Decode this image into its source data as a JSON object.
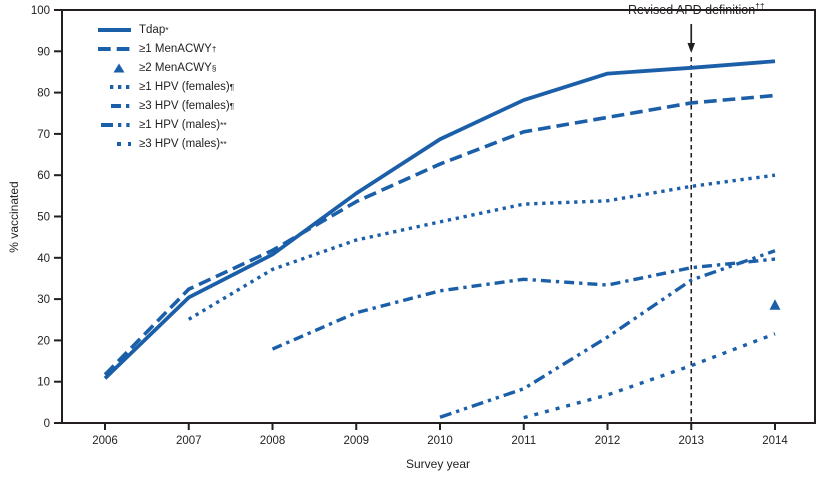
{
  "chart_data": {
    "type": "line",
    "xlabel": "Survey year",
    "ylabel": "% vaccinated",
    "x_ticks": [
      2006,
      2007,
      2008,
      2009,
      2010,
      2011,
      2012,
      2013,
      2014
    ],
    "y_ticks": [
      0,
      10,
      20,
      30,
      40,
      50,
      60,
      70,
      80,
      90,
      100
    ],
    "ylim": [
      0,
      100
    ],
    "grid": false,
    "legend_position": "top-left",
    "line_color": "#1c5fa9",
    "axis_color": "#231f20",
    "series": [
      {
        "id": "tdap",
        "name": "Tdap",
        "sup": "*",
        "line_style": "solid",
        "years": [
          2006,
          2007,
          2008,
          2009,
          2010,
          2011,
          2012,
          2013,
          2014
        ],
        "values": [
          10.8,
          30.4,
          40.8,
          55.6,
          68.7,
          78.2,
          84.6,
          86.0,
          87.6
        ]
      },
      {
        "id": "men1",
        "name": "≥1 MenACWY",
        "sup": "†",
        "line_style": "dashed",
        "years": [
          2006,
          2007,
          2008,
          2009,
          2010,
          2011,
          2012,
          2013,
          2014
        ],
        "values": [
          11.7,
          32.4,
          41.8,
          53.6,
          62.7,
          70.5,
          74.0,
          77.5,
          79.3
        ]
      },
      {
        "id": "men2",
        "name": "≥2 MenACWY",
        "sup": "§",
        "line_style": "triangle-marker",
        "years": [
          2014
        ],
        "values": [
          28.5
        ]
      },
      {
        "id": "hpv1f",
        "name": "≥1 HPV (females)",
        "sup": "¶",
        "line_style": "dotted",
        "years": [
          2007,
          2008,
          2009,
          2010,
          2011,
          2012,
          2013,
          2014
        ],
        "values": [
          25.1,
          37.2,
          44.3,
          48.7,
          53.0,
          53.8,
          57.3,
          60.0
        ]
      },
      {
        "id": "hpv3f",
        "name": "≥3 HPV (females)",
        "sup": "¶",
        "line_style": "dash-dot",
        "years": [
          2008,
          2009,
          2010,
          2011,
          2012,
          2013,
          2014
        ],
        "values": [
          17.9,
          26.7,
          32.0,
          34.8,
          33.4,
          37.6,
          39.7
        ]
      },
      {
        "id": "hpv1m",
        "name": "≥1 HPV (males)",
        "sup": "**",
        "line_style": "dash-dot-dot",
        "years": [
          2010,
          2011,
          2012,
          2013,
          2014
        ],
        "values": [
          1.4,
          8.3,
          20.8,
          34.6,
          41.7
        ]
      },
      {
        "id": "hpv3m",
        "name": "≥3 HPV (males)",
        "sup": "**",
        "line_style": "sparse-dotted",
        "years": [
          2011,
          2012,
          2013,
          2014
        ],
        "values": [
          1.3,
          6.8,
          13.9,
          21.6
        ]
      }
    ],
    "annotation": {
      "text": "Revised APD definition",
      "sup": "††",
      "year": 2013
    }
  }
}
